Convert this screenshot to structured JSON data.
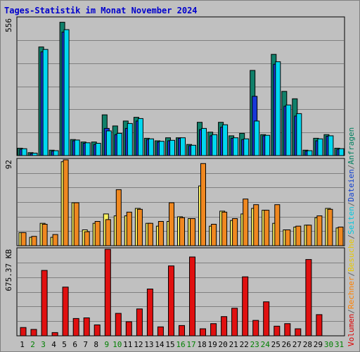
{
  "title": "Tages-Statistik im Monat November 2024",
  "legend": [
    {
      "text": "Volumen",
      "color": "#dd0000"
    },
    {
      "text": "/",
      "color": "#606060"
    },
    {
      "text": "Rechner",
      "color": "#ff8000"
    },
    {
      "text": "/",
      "color": "#606060"
    },
    {
      "text": "Besuche",
      "color": "#e8c800"
    },
    {
      "text": "/",
      "color": "#606060"
    },
    {
      "text": "Seiten",
      "color": "#00c8e0"
    },
    {
      "text": "/",
      "color": "#606060"
    },
    {
      "text": "Dateien",
      "color": "#1040d0"
    },
    {
      "text": "/",
      "color": "#606060"
    },
    {
      "text": "Anfragen",
      "color": "#008060"
    }
  ],
  "colors": {
    "title": "#0000cc",
    "weekend_label": "#008000",
    "weekday_label": "#000000",
    "anfragen": "#10806a",
    "dateien": "#1838d8",
    "seiten": "#00d8f0",
    "besuche": "#f8f060",
    "rechner": "#f08820",
    "volumen": "#e01010"
  },
  "chart_data": [
    {
      "type": "bar",
      "name": "Anfragen / Dateien / Seiten",
      "ymax_label": "556",
      "ylim": [
        0,
        556
      ],
      "categories": [
        "1",
        "2",
        "3",
        "4",
        "5",
        "6",
        "7",
        "8",
        "9",
        "10",
        "11",
        "12",
        "13",
        "14",
        "15",
        "16",
        "17",
        "18",
        "19",
        "20",
        "21",
        "22",
        "23",
        "24",
        "25",
        "26",
        "27",
        "28",
        "29",
        "30",
        "31"
      ],
      "series": [
        {
          "name": "Anfragen",
          "values": [
            30,
            12,
            440,
            22,
            540,
            65,
            55,
            55,
            165,
            120,
            140,
            155,
            70,
            60,
            72,
            72,
            45,
            135,
            95,
            135,
            80,
            90,
            345,
            85,
            410,
            260,
            230,
            22,
            70,
            85,
            30
          ]
        },
        {
          "name": "Dateien",
          "values": [
            25,
            8,
            420,
            18,
            500,
            60,
            50,
            45,
            110,
            85,
            110,
            140,
            65,
            55,
            60,
            70,
            40,
            105,
            80,
            115,
            70,
            65,
            240,
            80,
            370,
            200,
            160,
            18,
            60,
            78,
            25
          ]
        },
        {
          "name": "Seiten",
          "values": [
            28,
            10,
            430,
            20,
            510,
            63,
            52,
            50,
            100,
            90,
            130,
            150,
            68,
            58,
            62,
            72,
            42,
            110,
            85,
            125,
            72,
            68,
            140,
            82,
            380,
            205,
            170,
            20,
            68,
            80,
            28
          ]
        }
      ]
    },
    {
      "type": "bar",
      "name": "Besuche / Rechner",
      "ymax_label": "92",
      "ylim": [
        0,
        92
      ],
      "categories": [
        "1",
        "2",
        "3",
        "4",
        "5",
        "6",
        "7",
        "8",
        "9",
        "10",
        "11",
        "12",
        "13",
        "14",
        "15",
        "16",
        "17",
        "18",
        "19",
        "20",
        "21",
        "22",
        "23",
        "24",
        "25",
        "26",
        "27",
        "28",
        "29",
        "30",
        "31"
      ],
      "series": [
        {
          "name": "Besuche",
          "values": [
            14,
            9,
            24,
            9,
            90,
            46,
            17,
            24,
            34,
            32,
            32,
            40,
            24,
            21,
            26,
            31,
            29,
            64,
            21,
            37,
            27,
            34,
            40,
            38,
            24,
            17,
            20,
            22,
            30,
            40,
            19
          ]
        },
        {
          "name": "Rechner",
          "values": [
            14,
            10,
            23,
            12,
            92,
            46,
            15,
            26,
            28,
            60,
            36,
            39,
            24,
            26,
            46,
            30,
            29,
            88,
            23,
            36,
            29,
            50,
            44,
            38,
            44,
            17,
            21,
            22,
            32,
            39,
            20
          ]
        }
      ]
    },
    {
      "type": "bar",
      "name": "Volumen",
      "ymax_label": "675.37 KB",
      "ylim": [
        0,
        675.37
      ],
      "categories": [
        "1",
        "2",
        "3",
        "4",
        "5",
        "6",
        "7",
        "8",
        "9",
        "10",
        "11",
        "12",
        "13",
        "14",
        "15",
        "16",
        "17",
        "18",
        "19",
        "20",
        "21",
        "22",
        "23",
        "24",
        "25",
        "26",
        "27",
        "28",
        "29",
        "30",
        "31"
      ],
      "series": [
        {
          "name": "Volumen",
          "values": [
            65,
            50,
            510,
            25,
            380,
            135,
            140,
            85,
            675,
            175,
            110,
            210,
            365,
            70,
            545,
            80,
            615,
            55,
            95,
            150,
            215,
            460,
            120,
            265,
            75,
            95,
            55,
            595,
            165,
            0,
            0
          ]
        }
      ]
    }
  ],
  "days": [
    {
      "label": "1",
      "weekend": false
    },
    {
      "label": "2",
      "weekend": true
    },
    {
      "label": "3",
      "weekend": true
    },
    {
      "label": "4",
      "weekend": false
    },
    {
      "label": "5",
      "weekend": false
    },
    {
      "label": "6",
      "weekend": false
    },
    {
      "label": "7",
      "weekend": false
    },
    {
      "label": "8",
      "weekend": false
    },
    {
      "label": "9",
      "weekend": true
    },
    {
      "label": "10",
      "weekend": true
    },
    {
      "label": "11",
      "weekend": false
    },
    {
      "label": "12",
      "weekend": false
    },
    {
      "label": "13",
      "weekend": false
    },
    {
      "label": "14",
      "weekend": false
    },
    {
      "label": "15",
      "weekend": false
    },
    {
      "label": "16",
      "weekend": true
    },
    {
      "label": "17",
      "weekend": true
    },
    {
      "label": "18",
      "weekend": false
    },
    {
      "label": "19",
      "weekend": false
    },
    {
      "label": "20",
      "weekend": false
    },
    {
      "label": "21",
      "weekend": false
    },
    {
      "label": "22",
      "weekend": false
    },
    {
      "label": "23",
      "weekend": true
    },
    {
      "label": "24",
      "weekend": true
    },
    {
      "label": "25",
      "weekend": false
    },
    {
      "label": "26",
      "weekend": false
    },
    {
      "label": "27",
      "weekend": false
    },
    {
      "label": "28",
      "weekend": false
    },
    {
      "label": "29",
      "weekend": false
    },
    {
      "label": "30",
      "weekend": true
    },
    {
      "label": "31",
      "weekend": true
    }
  ]
}
